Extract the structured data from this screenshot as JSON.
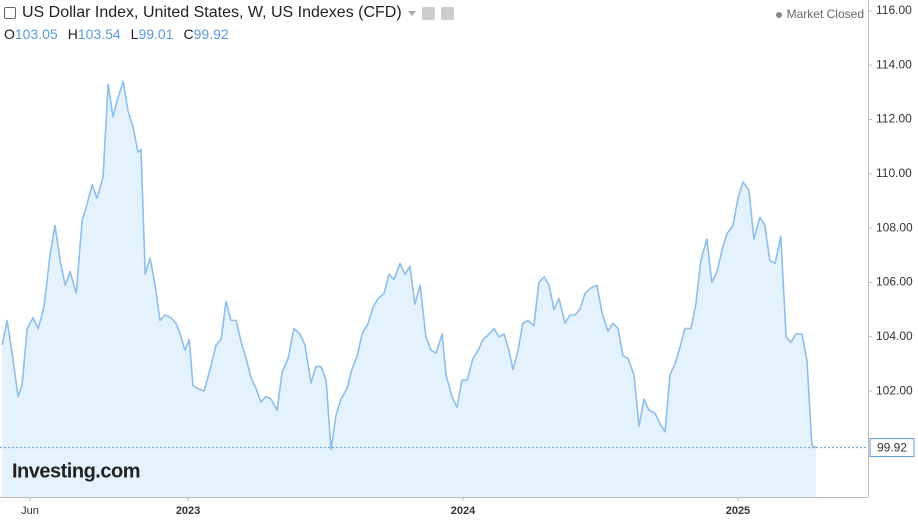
{
  "chart_data": {
    "type": "area",
    "title": "US Dollar Index, United States, W, US Indexes (CFD)",
    "status": "Market Closed",
    "watermark": "Investing.com",
    "ohlc": [
      {
        "label": "O",
        "value": 103.05
      },
      {
        "label": "H",
        "value": 103.54
      },
      {
        "label": "L",
        "value": 99.01
      },
      {
        "label": "C",
        "value": 99.92
      }
    ],
    "color": "#8ebfe9",
    "fill_color": "#e3f2fc",
    "price_line_color": "#5a9ad6",
    "x": [
      2022.324,
      2022.342,
      2022.36,
      2022.382,
      2022.396,
      2022.415,
      2022.436,
      2022.455,
      2022.476,
      2022.498,
      2022.516,
      2022.535,
      2022.553,
      2022.571,
      2022.593,
      2022.615,
      2022.633,
      2022.651,
      2022.669,
      2022.691,
      2022.709,
      2022.727,
      2022.745,
      2022.764,
      2022.782,
      2022.8,
      2022.818,
      2022.829,
      2022.844,
      2022.862,
      2022.88,
      2022.898,
      2022.916,
      2022.938,
      2022.956,
      2022.971,
      2022.989,
      2023.004,
      2023.018,
      2023.036,
      2023.058,
      2023.08,
      2023.102,
      2023.12,
      2023.138,
      2023.156,
      2023.175,
      2023.193,
      2023.211,
      2023.229,
      2023.247,
      2023.265,
      2023.284,
      2023.302,
      2023.324,
      2023.342,
      2023.364,
      2023.385,
      2023.407,
      2023.425,
      2023.447,
      2023.465,
      2023.484,
      2023.502,
      2023.52,
      2023.538,
      2023.556,
      2023.578,
      2023.596,
      2023.615,
      2023.633,
      2023.655,
      2023.673,
      2023.691,
      2023.713,
      2023.731,
      2023.749,
      2023.771,
      2023.789,
      2023.807,
      2023.825,
      2023.844,
      2023.865,
      2023.884,
      2023.902,
      2023.924,
      2023.938,
      2023.96,
      2023.978,
      2023.996,
      2024.015,
      2024.036,
      2024.055,
      2024.073,
      2024.095,
      2024.113,
      2024.131,
      2024.149,
      2024.167,
      2024.182,
      2024.2,
      2024.218,
      2024.236,
      2024.258,
      2024.276,
      2024.295,
      2024.313,
      2024.331,
      2024.349,
      2024.371,
      2024.389,
      2024.407,
      2024.425,
      2024.444,
      2024.465,
      2024.487,
      2024.505,
      2024.527,
      2024.545,
      2024.564,
      2024.582,
      2024.6,
      2024.622,
      2024.64,
      2024.658,
      2024.676,
      2024.698,
      2024.716,
      2024.735,
      2024.753,
      2024.771,
      2024.789,
      2024.807,
      2024.829,
      2024.847,
      2024.865,
      2024.887,
      2024.905,
      2024.924,
      2024.942,
      2024.96,
      2024.982,
      2025.0,
      2025.018,
      2025.04,
      2025.058,
      2025.08,
      2025.098,
      2025.116,
      2025.135,
      2025.156,
      2025.175,
      2025.193,
      2025.211,
      2025.233,
      2025.251,
      2025.269,
      2025.284
    ],
    "values": [
      103.7,
      104.6,
      103.4,
      101.8,
      102.2,
      104.3,
      104.7,
      104.3,
      105.1,
      107.0,
      108.1,
      106.8,
      105.9,
      106.4,
      105.6,
      108.3,
      108.9,
      109.6,
      109.1,
      109.9,
      113.3,
      112.1,
      112.8,
      113.4,
      112.3,
      111.7,
      110.8,
      110.9,
      106.3,
      106.9,
      105.9,
      104.6,
      104.8,
      104.7,
      104.5,
      104.1,
      103.5,
      103.9,
      102.2,
      102.1,
      102.0,
      102.8,
      103.7,
      103.9,
      105.3,
      104.6,
      104.6,
      103.8,
      103.2,
      102.5,
      102.1,
      101.6,
      101.8,
      101.7,
      101.3,
      102.7,
      103.2,
      104.3,
      104.1,
      103.7,
      102.3,
      102.9,
      102.9,
      102.4,
      99.85,
      101.1,
      101.7,
      102.1,
      102.8,
      103.3,
      104.1,
      104.5,
      105.1,
      105.4,
      105.6,
      106.3,
      106.1,
      106.7,
      106.3,
      106.6,
      105.2,
      105.9,
      104.0,
      103.5,
      103.4,
      104.1,
      102.6,
      101.8,
      101.4,
      102.4,
      102.4,
      103.2,
      103.5,
      103.9,
      104.1,
      104.3,
      104.0,
      104.1,
      103.5,
      102.8,
      103.5,
      104.5,
      104.6,
      104.4,
      106.0,
      106.2,
      105.9,
      105.0,
      105.4,
      104.5,
      104.8,
      104.8,
      105.0,
      105.6,
      105.8,
      105.9,
      104.9,
      104.2,
      104.5,
      104.3,
      103.3,
      103.2,
      102.6,
      100.7,
      101.7,
      101.3,
      101.2,
      100.8,
      100.5,
      102.6,
      103.0,
      103.6,
      104.3,
      104.3,
      105.2,
      106.8,
      107.6,
      106.0,
      106.4,
      107.2,
      107.8,
      108.1,
      109.1,
      109.7,
      109.4,
      107.6,
      108.4,
      108.1,
      106.8,
      106.7,
      107.7,
      104.0,
      103.8,
      104.1,
      104.1,
      103.1,
      100.0,
      99.92
    ],
    "xlim": [
      2022.316,
      2025.473
    ],
    "xticks": [
      {
        "value": 2022.425,
        "label": "Jun"
      },
      2023,
      2024,
      2025
    ],
    "ylim": [
      98.1,
      116.4
    ],
    "yticks": [
      {
        "value": 102,
        "label": "102.00"
      },
      {
        "value": 104,
        "label": "104.00"
      },
      {
        "value": 106,
        "label": "106.00"
      },
      {
        "value": 108,
        "label": "108.00"
      },
      {
        "value": 110,
        "label": "110.00"
      },
      {
        "value": 112,
        "label": "112.00"
      },
      {
        "value": 114,
        "label": "114.00"
      },
      {
        "value": 116,
        "label": "116.00"
      }
    ],
    "grid": false
  }
}
